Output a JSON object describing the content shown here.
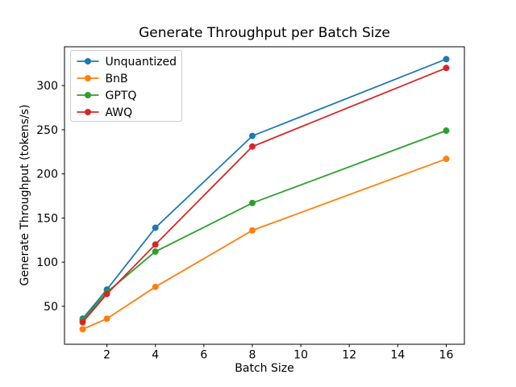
{
  "chart_data": {
    "type": "line",
    "title": "Generate Throughput per Batch Size",
    "xlabel": "Batch Size",
    "ylabel": "Generate Throughput (tokens/s)",
    "x": [
      1,
      2,
      4,
      8,
      16
    ],
    "series": [
      {
        "name": "Unquantized",
        "color": "#1f77b4",
        "values": [
          36,
          69,
          139,
          243,
          330
        ]
      },
      {
        "name": "BnB",
        "color": "#ff7f0e",
        "values": [
          24,
          36,
          72,
          136,
          217
        ]
      },
      {
        "name": "GPTQ",
        "color": "#2ca02c",
        "values": [
          34,
          66,
          112,
          167,
          249
        ]
      },
      {
        "name": "AWQ",
        "color": "#d62728",
        "values": [
          32,
          64,
          120,
          231,
          320
        ]
      }
    ],
    "xlim": [
      0.25,
      16.75
    ],
    "ylim": [
      7,
      344
    ],
    "xticks": [
      2,
      4,
      6,
      8,
      10,
      12,
      14,
      16
    ],
    "yticks": [
      50,
      100,
      150,
      200,
      250,
      300
    ],
    "grid": false,
    "legend_position": "upper-left",
    "marker": "circle",
    "axis_color": "#000000",
    "legend_border_color": "#cccccc",
    "background": "#ffffff"
  }
}
